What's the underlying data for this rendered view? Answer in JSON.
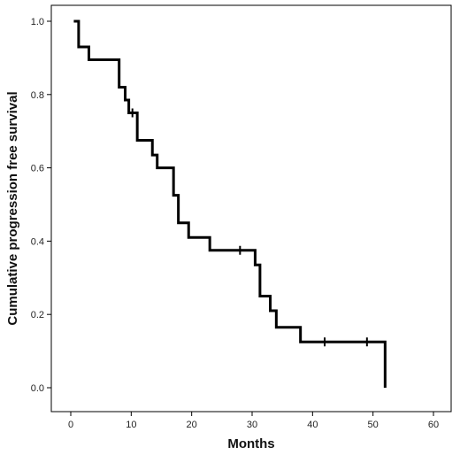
{
  "chart_data": {
    "type": "line",
    "subtype": "kaplan-meier-step",
    "title": "",
    "xlabel": "Months",
    "ylabel": "Cumulative progression free survival",
    "xlim": [
      0,
      60
    ],
    "ylim": [
      0,
      1.0
    ],
    "xticks": [
      0,
      10,
      20,
      30,
      40,
      50,
      60
    ],
    "yticks": [
      0.0,
      0.2,
      0.4,
      0.6,
      0.8,
      1.0
    ],
    "xtick_labels": [
      "0",
      "10",
      "20",
      "30",
      "40",
      "50",
      "60"
    ],
    "ytick_labels": [
      "0.0",
      "0.2",
      "0.4",
      "0.6",
      "0.8",
      "1.0"
    ],
    "grid": false,
    "legend": "none",
    "line_color": "#000000",
    "series": [
      {
        "steps": [
          {
            "x": 0.5,
            "y": 1.0
          },
          {
            "x": 1.3,
            "y": 0.93
          },
          {
            "x": 3.0,
            "y": 0.895
          },
          {
            "x": 8.0,
            "y": 0.82
          },
          {
            "x": 9.0,
            "y": 0.785
          },
          {
            "x": 9.6,
            "y": 0.75
          },
          {
            "x": 11.0,
            "y": 0.675
          },
          {
            "x": 13.5,
            "y": 0.635
          },
          {
            "x": 14.3,
            "y": 0.6
          },
          {
            "x": 17.0,
            "y": 0.525
          },
          {
            "x": 17.8,
            "y": 0.45
          },
          {
            "x": 19.5,
            "y": 0.41
          },
          {
            "x": 23.0,
            "y": 0.375
          },
          {
            "x": 30.5,
            "y": 0.335
          },
          {
            "x": 31.3,
            "y": 0.25
          },
          {
            "x": 33.0,
            "y": 0.21
          },
          {
            "x": 34.0,
            "y": 0.165
          },
          {
            "x": 38.0,
            "y": 0.125
          },
          {
            "x": 52.0,
            "y": 0.0
          }
        ],
        "censored": [
          {
            "x": 10.2,
            "y": 0.75
          },
          {
            "x": 28.0,
            "y": 0.375
          },
          {
            "x": 42.0,
            "y": 0.125
          },
          {
            "x": 49.0,
            "y": 0.125
          }
        ]
      }
    ]
  }
}
